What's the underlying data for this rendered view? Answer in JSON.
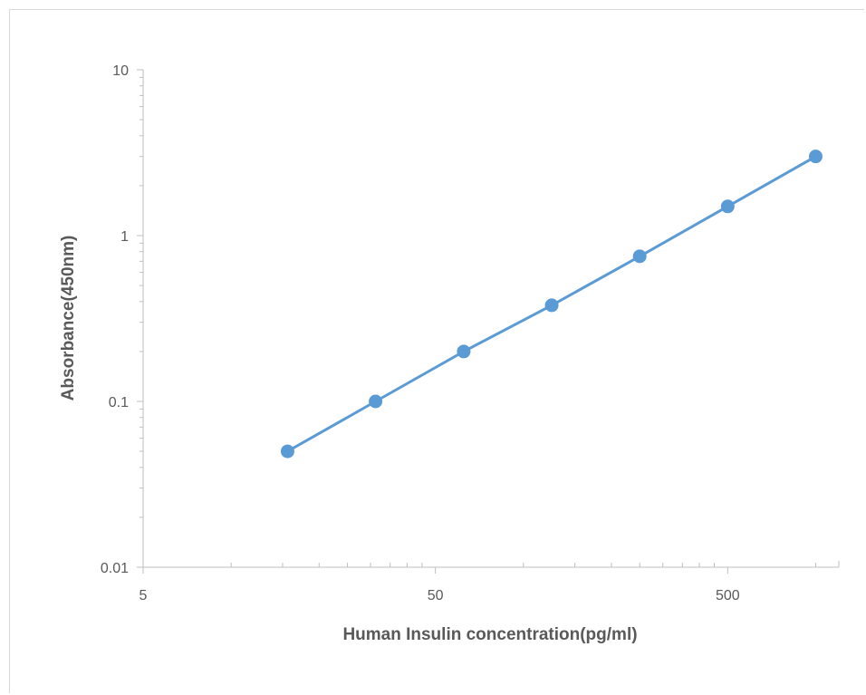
{
  "chart_data": {
    "type": "scatter",
    "title": "",
    "xlabel": "Human Insulin concentration(pg/ml)",
    "ylabel": "Absorbance(450nm)",
    "x_scale": "log",
    "y_scale": "log",
    "xlim": [
      5,
      1200
    ],
    "ylim": [
      0.01,
      10
    ],
    "x_ticks": [
      "5",
      "50",
      "500"
    ],
    "y_ticks": [
      "10",
      "1",
      "0.1",
      "0.01"
    ],
    "grid": false,
    "legend": "none",
    "series": [
      {
        "x": [
          15.6,
          31.2,
          62.5,
          125,
          250,
          500,
          1000
        ],
        "y": [
          0.05,
          0.1,
          0.2,
          0.38,
          0.75,
          1.5,
          3.0
        ],
        "color": "#5b9bd5"
      }
    ]
  }
}
